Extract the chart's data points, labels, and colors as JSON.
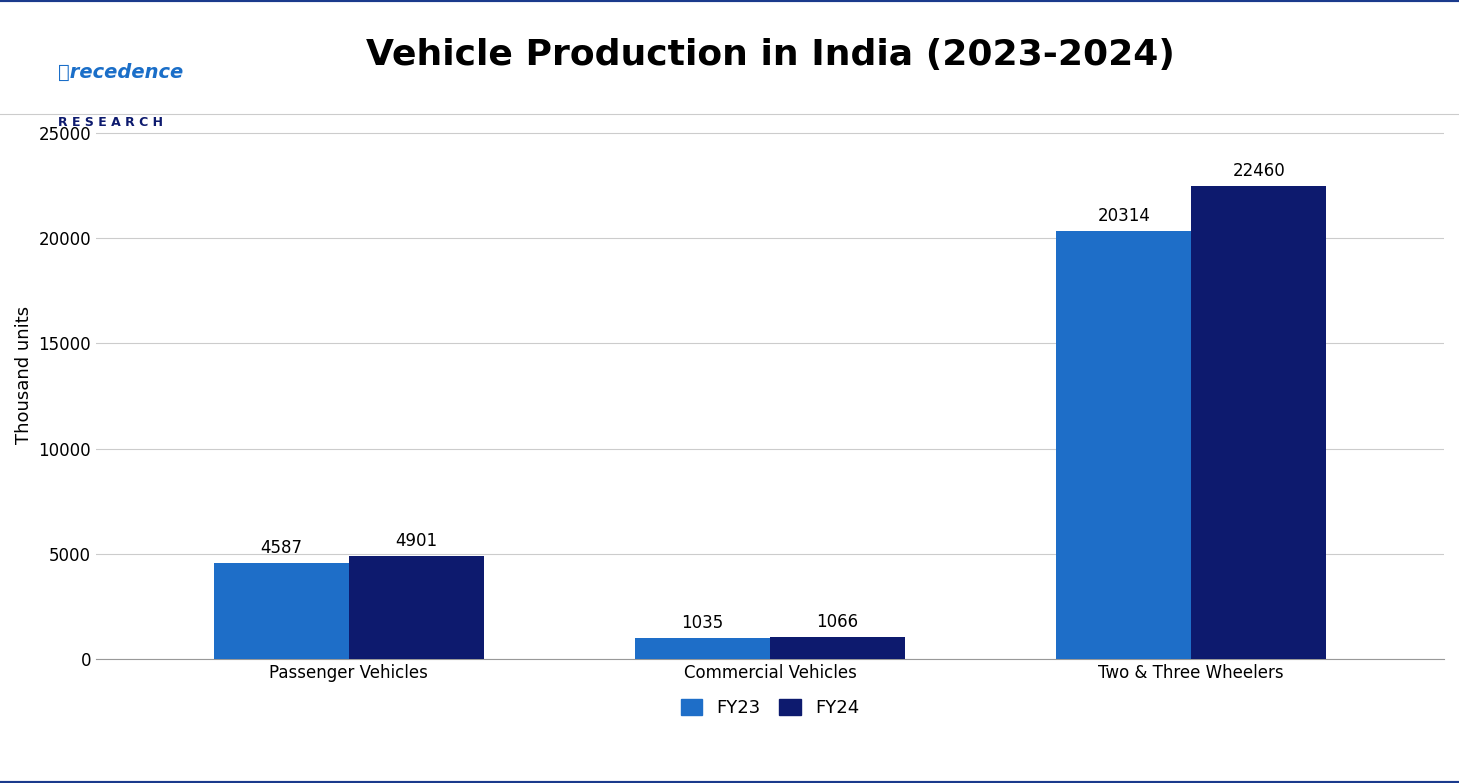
{
  "title": "Vehicle Production in India (2023-2024)",
  "categories": [
    "Passenger Vehicles",
    "Commercial Vehicles",
    "Two & Three Wheelers"
  ],
  "fy23_values": [
    4587,
    1035,
    20314
  ],
  "fy24_values": [
    4901,
    1066,
    22460
  ],
  "fy23_color": "#1e6ec8",
  "fy24_color": "#0d1a6e",
  "ylabel": "Thousand units",
  "ylim": [
    0,
    27000
  ],
  "yticks": [
    0,
    5000,
    10000,
    15000,
    20000,
    25000
  ],
  "bar_width": 0.32,
  "legend_labels": [
    "FY23",
    "FY24"
  ],
  "background_color": "#ffffff",
  "title_fontsize": 26,
  "axis_label_fontsize": 13,
  "tick_fontsize": 12,
  "annotation_fontsize": 12,
  "legend_fontsize": 13,
  "border_color": "#1a3a8c",
  "grid_color": "#cccccc",
  "precedence_color": "#1a6ec8",
  "research_color": "#0d1a6e"
}
